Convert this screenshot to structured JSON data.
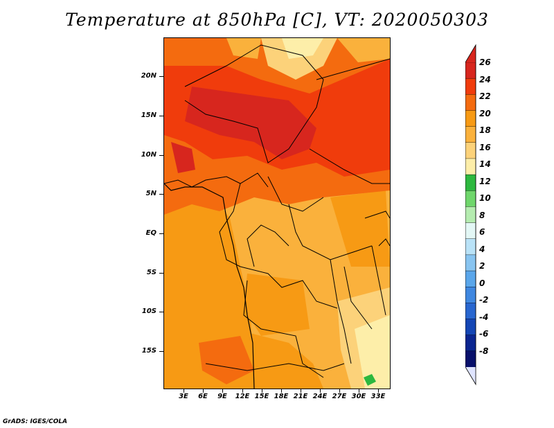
{
  "title": "Temperature at 850hPa [C], VT: 2020050303",
  "credit": "GrADS: IGES/COLA",
  "map": {
    "lat_range": [
      -20,
      25
    ],
    "lon_range": [
      0,
      35
    ],
    "lat_labels": [
      "20N",
      "15N",
      "10N",
      "5N",
      "EQ",
      "5S",
      "10S",
      "15S"
    ],
    "lat_values": [
      20,
      15,
      10,
      5,
      0,
      -5,
      -10,
      -15
    ],
    "lon_labels": [
      "3E",
      "6E",
      "9E",
      "12E",
      "15E",
      "18E",
      "21E",
      "24E",
      "27E",
      "30E",
      "33E"
    ],
    "lon_values": [
      3,
      6,
      9,
      12,
      15,
      18,
      21,
      24,
      27,
      30,
      33
    ]
  },
  "colorbar": {
    "labels": [
      "26",
      "24",
      "22",
      "20",
      "18",
      "16",
      "14",
      "12",
      "10",
      "8",
      "6",
      "4",
      "2",
      "0",
      "-2",
      "-4",
      "-6",
      "-8"
    ],
    "colors": [
      "#d7261e",
      "#f03c0c",
      "#f46b0f",
      "#f79a14",
      "#fab13c",
      "#fcd27a",
      "#fdeea9",
      "#2db83f",
      "#6fd66b",
      "#b5ecb0",
      "#e3f7f5",
      "#b9e2f7",
      "#88c4f0",
      "#5aa6ea",
      "#3f87e0",
      "#2866cf",
      "#1446b5",
      "#0a2590",
      "#08106b"
    ],
    "top_color": "#d7261e",
    "bottom_color": "#dfe4ff"
  }
}
